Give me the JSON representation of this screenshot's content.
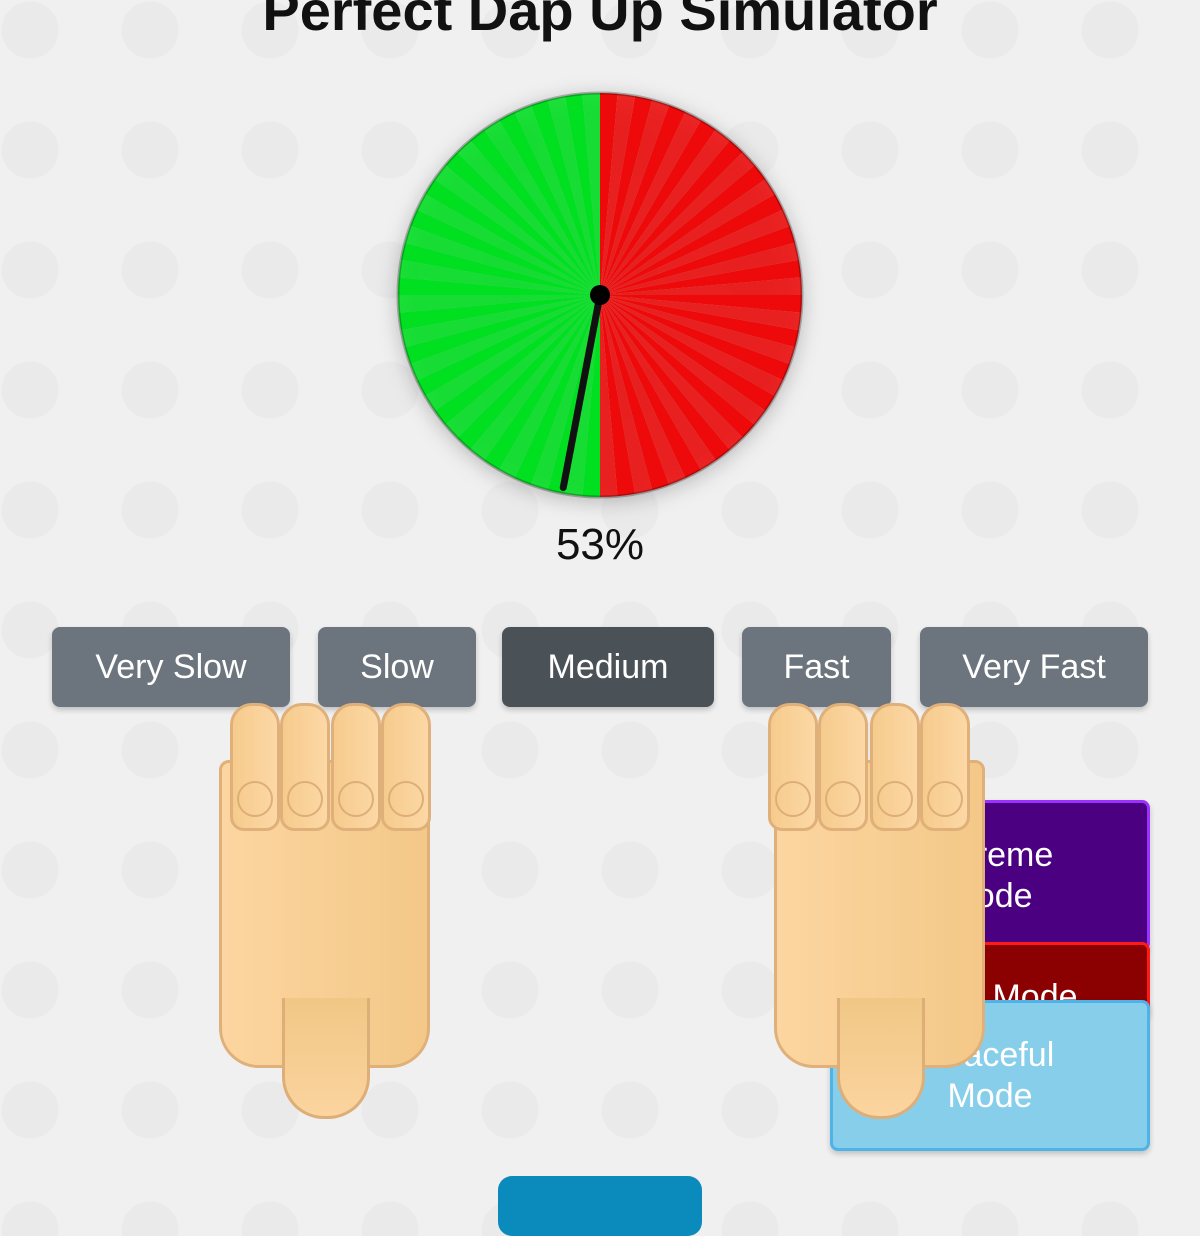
{
  "title": "Perfect Dap Up Simulator",
  "meter": {
    "percent_label": "53%",
    "percent": 53,
    "left_color": "#00e020",
    "right_color": "#ee0a0a",
    "needle_color": "#111111"
  },
  "speed_buttons": [
    {
      "label": "Very Slow",
      "active": false
    },
    {
      "label": "Slow",
      "active": false
    },
    {
      "label": "Medium",
      "active": true
    },
    {
      "label": "Fast",
      "active": false
    },
    {
      "label": "Very Fast",
      "active": false
    }
  ],
  "mode_buttons": {
    "extreme": {
      "label": "Extreme Mode",
      "color": "#4b0082"
    },
    "red": {
      "label": "Mode",
      "color": "#8b0000"
    },
    "graceful": {
      "label": "Graceful Mode",
      "color": "#87ceeb"
    }
  },
  "hands": [
    "left-hand",
    "right-hand"
  ]
}
